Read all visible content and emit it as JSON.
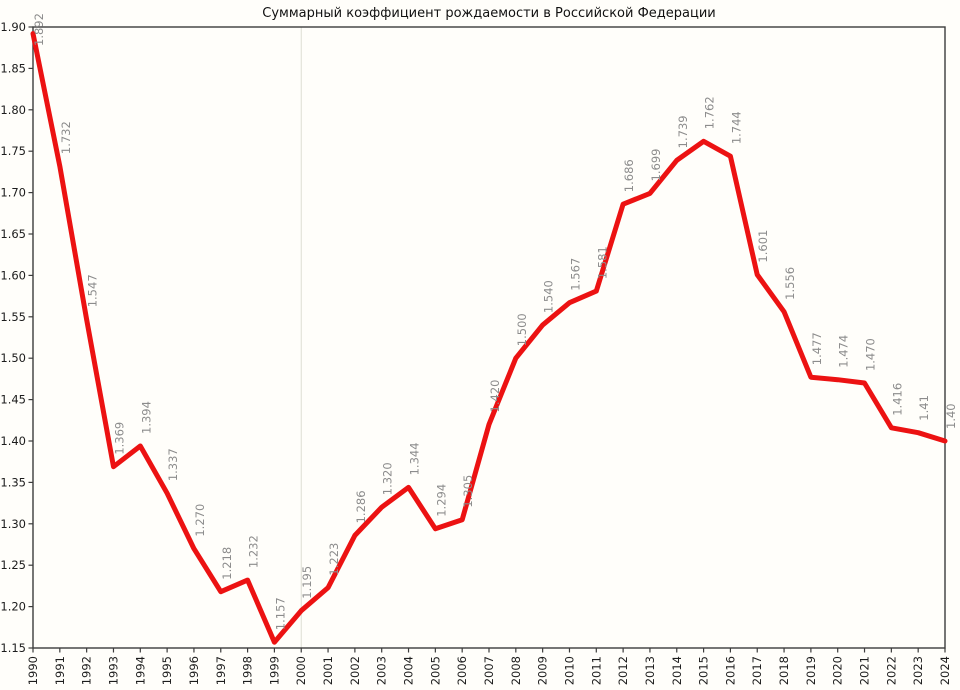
{
  "chart_data": {
    "type": "line",
    "title": "Суммарный коэффициент рождаемости в Российской Федерации",
    "xlabel": "",
    "ylabel": "",
    "x": [
      1990,
      1991,
      1992,
      1993,
      1994,
      1995,
      1996,
      1997,
      1998,
      1999,
      2000,
      2001,
      2002,
      2003,
      2004,
      2005,
      2006,
      2007,
      2008,
      2009,
      2010,
      2011,
      2012,
      2013,
      2014,
      2015,
      2016,
      2017,
      2018,
      2019,
      2020,
      2021,
      2022,
      2023,
      2024
    ],
    "series": [
      {
        "name": "Суммарный коэффициент рождаемости",
        "values": [
          1.892,
          1.732,
          1.547,
          1.369,
          1.394,
          1.337,
          1.27,
          1.218,
          1.232,
          1.157,
          1.195,
          1.223,
          1.286,
          1.32,
          1.344,
          1.294,
          1.305,
          1.42,
          1.5,
          1.54,
          1.567,
          1.581,
          1.686,
          1.699,
          1.739,
          1.762,
          1.744,
          1.601,
          1.556,
          1.477,
          1.474,
          1.47,
          1.416,
          1.41,
          1.4
        ],
        "point_labels": [
          "1.892",
          "1.732",
          "1.547",
          "1.369",
          "1.394",
          "1.337",
          "1.270",
          "1.218",
          "1.232",
          "1.157",
          "1.195",
          "1.223",
          "1.286",
          "1.320",
          "1.344",
          "1.294",
          "1.305",
          "1.420",
          "1.500",
          "1.540",
          "1.567",
          "1.581",
          "1.686",
          "1.699",
          "1.739",
          "1.762",
          "1.744",
          "1.601",
          "1.556",
          "1.477",
          "1.474",
          "1.470",
          "1.416",
          "1.41",
          "1.40"
        ]
      }
    ],
    "ylim": [
      1.15,
      1.9
    ],
    "ytick_step": 0.05,
    "xtick_every_year": true,
    "grid_vline_x": 2000,
    "legend": "none",
    "colors": {
      "line": "#ec1212",
      "point_labels": "#8c8c8c",
      "axis": "#3c3c3c",
      "tick_labels": "#1c1c1c",
      "grid": "#ddddd3",
      "background": "#fffefa",
      "title": "#111111"
    }
  }
}
